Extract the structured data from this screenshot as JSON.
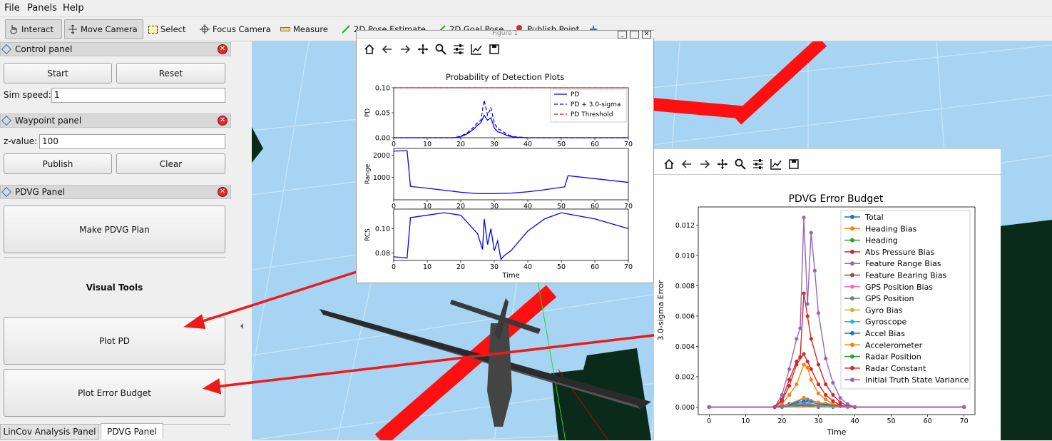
{
  "menubar": {
    "file": "File",
    "panels": "Panels",
    "help": "Help"
  },
  "toolbar": {
    "interact": "Interact",
    "move_camera": "Move Camera",
    "select": "Select",
    "focus_camera": "Focus Camera",
    "measure": "Measure",
    "pose_estimate": "2D Pose Estimate",
    "goal_pose": "2D Goal Pose",
    "publish_point": "Publish Point"
  },
  "control_panel": {
    "title": "Control panel",
    "start": "Start",
    "reset": "Reset",
    "sim_speed_label": "Sim speed:",
    "sim_speed_value": "1"
  },
  "waypoint_panel": {
    "title": "Waypoint panel",
    "z_label": "z-value:",
    "z_value": "100",
    "publish": "Publish",
    "clear": "Clear"
  },
  "pdvg_panel": {
    "title": "PDVG Panel",
    "make_plan": "Make PDVG Plan",
    "visual_tools": "Visual Tools",
    "plot_pd": "Plot PD",
    "plot_error_budget": "Plot Error Budget"
  },
  "tabs": {
    "lincov": "LinCov Analysis Panel",
    "pdvg": "PDVG Panel"
  },
  "figure1": {
    "window_title": "Figure 1",
    "title": "Probability of Detection Plots",
    "xlabel": "Time",
    "ylabel_top": "PD",
    "ylabel_mid": "Range",
    "ylabel_bot": "RCS",
    "legend": [
      "PD",
      "PD + 3.0-sigma",
      "PD Threshold"
    ]
  },
  "figure2": {
    "title": "PDVG Error Budget",
    "xlabel": "Time",
    "ylabel": "3.0-sigma Error"
  },
  "colors": {
    "view_bg": "#a6d4f2",
    "red_path": "#ff1010",
    "ground": "#0a2a1a",
    "pd": "#0000ff",
    "threshold": "#e00000"
  },
  "chart_data": [
    {
      "type": "line",
      "title": "Probability of Detection Plots",
      "ylabel": "PD",
      "xlabel": "",
      "ylim": [
        0,
        0.1
      ],
      "xlim": [
        0,
        70
      ],
      "series": [
        {
          "name": "PD",
          "x": [
            0,
            18,
            20,
            22,
            24,
            25,
            26,
            27,
            28,
            29,
            30,
            31,
            32,
            34,
            36,
            40,
            70
          ],
          "y": [
            0,
            0,
            0.002,
            0.008,
            0.018,
            0.025,
            0.03,
            0.045,
            0.035,
            0.04,
            0.02,
            0.012,
            0.01,
            0.004,
            0.001,
            0,
            0
          ]
        },
        {
          "name": "PD + 3.0-sigma",
          "x": [
            0,
            18,
            20,
            22,
            24,
            25,
            26,
            27,
            28,
            29,
            30,
            31,
            32,
            34,
            36,
            40,
            70
          ],
          "y": [
            0,
            0,
            0.003,
            0.01,
            0.022,
            0.03,
            0.035,
            0.075,
            0.045,
            0.06,
            0.03,
            0.018,
            0.015,
            0.006,
            0.002,
            0,
            0
          ]
        },
        {
          "name": "PD Threshold",
          "x": [
            0,
            70
          ],
          "y": [
            0.1,
            0.1
          ]
        }
      ]
    },
    {
      "type": "line",
      "ylabel": "Range",
      "xlabel": "",
      "ylim": [
        0,
        2300
      ],
      "xlim": [
        0,
        70
      ],
      "series": [
        {
          "name": "",
          "x": [
            0,
            4,
            5,
            10,
            20,
            25,
            30,
            35,
            40,
            45,
            51,
            52,
            70
          ],
          "y": [
            2180,
            2200,
            600,
            520,
            340,
            280,
            280,
            300,
            360,
            450,
            580,
            1080,
            780
          ]
        }
      ]
    },
    {
      "type": "line",
      "ylabel": "RCS",
      "xlabel": "Time",
      "ylim": [
        0.074,
        0.116
      ],
      "xlim": [
        0,
        70
      ],
      "series": [
        {
          "name": "",
          "x": [
            0,
            4,
            5,
            10,
            15,
            20,
            25,
            26.5,
            27,
            28,
            29,
            30,
            31,
            32,
            33,
            35,
            40,
            45,
            50,
            52,
            60,
            70
          ],
          "y": [
            0.077,
            0.076,
            0.109,
            0.111,
            0.113,
            0.111,
            0.096,
            0.083,
            0.108,
            0.087,
            0.1,
            0.082,
            0.09,
            0.075,
            0.078,
            0.082,
            0.098,
            0.108,
            0.113,
            0.112,
            0.108,
            0.1
          ]
        }
      ]
    },
    {
      "type": "line",
      "title": "PDVG Error Budget",
      "xlabel": "Time",
      "ylabel": "3.0-sigma Error",
      "ylim": [
        -0.0005,
        0.0132
      ],
      "xlim": [
        -3,
        73
      ],
      "legend": "top-right",
      "categories": [
        0,
        10,
        20,
        30,
        40,
        50,
        60,
        70
      ],
      "series": [
        {
          "name": "Total",
          "color": "#1f77b4",
          "x": [
            0,
            18,
            20,
            22,
            24,
            26,
            27,
            28,
            30,
            32,
            34,
            36,
            38,
            40,
            70
          ],
          "y": [
            0,
            0,
            0.0001,
            0.0002,
            0.0003,
            0.0006,
            0.0005,
            0.0004,
            0.0003,
            0.0002,
            0.0001,
            5e-05,
            0,
            0,
            0
          ]
        },
        {
          "name": "Heading Bias",
          "color": "#ff7f0e",
          "x": [
            0,
            18,
            20,
            22,
            24,
            26,
            27,
            28,
            30,
            32,
            34,
            36,
            38,
            40,
            70
          ],
          "y": [
            0,
            0,
            0.0002,
            0.0008,
            0.0015,
            0.0028,
            0.0026,
            0.0018,
            0.0009,
            0.0005,
            0.0002,
            0.0001,
            0,
            0,
            0
          ]
        },
        {
          "name": "Heading",
          "color": "#2ca02c",
          "x": [
            0,
            18,
            20,
            24,
            26,
            28,
            30,
            34,
            40,
            70
          ],
          "y": [
            0,
            0,
            0,
            0.0001,
            0.0002,
            0.0001,
            0.0001,
            0,
            0,
            0
          ]
        },
        {
          "name": "Abs Pressure Bias",
          "color": "#d62728",
          "x": [
            0,
            18,
            20,
            22,
            24,
            25,
            26,
            27,
            28,
            30,
            32,
            34,
            36,
            38,
            40,
            70
          ],
          "y": [
            0,
            0,
            0.0005,
            0.0018,
            0.003,
            0.0033,
            0.0075,
            0.006,
            0.0045,
            0.0028,
            0.0015,
            0.0008,
            0.0003,
            0.0001,
            0,
            0
          ]
        },
        {
          "name": "Feature Range Bias",
          "color": "#9467bd",
          "x": [
            0,
            18,
            20,
            22,
            24,
            25,
            26,
            27,
            28,
            29,
            30,
            32,
            34,
            36,
            38,
            40,
            70
          ],
          "y": [
            0,
            0,
            0.0008,
            0.0025,
            0.0045,
            0.0052,
            0.0125,
            0.0068,
            0.0115,
            0.009,
            0.0062,
            0.0032,
            0.0016,
            0.0006,
            0.0002,
            0,
            0
          ]
        },
        {
          "name": "Feature Bearing Bias",
          "color": "#8c564b",
          "x": [
            0,
            20,
            26,
            30,
            40,
            70
          ],
          "y": [
            0,
            0,
            0.0001,
            0,
            0,
            0
          ]
        },
        {
          "name": "GPS Position Bias",
          "color": "#e377c2",
          "x": [
            0,
            70
          ],
          "y": [
            0,
            0
          ]
        },
        {
          "name": "GPS Position",
          "color": "#7f7f7f",
          "x": [
            0,
            70
          ],
          "y": [
            0,
            0
          ]
        },
        {
          "name": "Gyro Bias",
          "color": "#bcbd22",
          "x": [
            0,
            70
          ],
          "y": [
            0,
            0
          ]
        },
        {
          "name": "Gyroscope",
          "color": "#17becf",
          "x": [
            0,
            20,
            26,
            30,
            40,
            70
          ],
          "y": [
            0,
            0,
            0.0003,
            0.0001,
            0,
            0
          ]
        },
        {
          "name": "Accel Bias",
          "color": "#1f77b4",
          "x": [
            0,
            20,
            26,
            30,
            40,
            70
          ],
          "y": [
            0,
            0,
            0.0004,
            0.0002,
            0,
            0
          ]
        },
        {
          "name": "Accelerometer",
          "color": "#ff7f0e",
          "x": [
            0,
            20,
            26,
            30,
            40,
            70
          ],
          "y": [
            0,
            0,
            0.0006,
            0.0003,
            0,
            0
          ]
        },
        {
          "name": "Radar Position",
          "color": "#2ca02c",
          "x": [
            0,
            20,
            26,
            30,
            40,
            70
          ],
          "y": [
            0,
            0,
            0.0002,
            0.0001,
            0,
            0
          ]
        },
        {
          "name": "Radar Constant",
          "color": "#d62728",
          "x": [
            0,
            18,
            20,
            22,
            24,
            26,
            27,
            28,
            30,
            32,
            34,
            36,
            40,
            70
          ],
          "y": [
            0,
            0,
            0.0004,
            0.0014,
            0.0028,
            0.0035,
            0.003,
            0.0025,
            0.0015,
            0.0008,
            0.0004,
            0.0001,
            0,
            0
          ]
        },
        {
          "name": "Initial Truth State Variance",
          "color": "#9467bd",
          "x": [
            0,
            20,
            26,
            30,
            40,
            70
          ],
          "y": [
            0,
            0,
            0.0002,
            0.0001,
            0,
            0
          ]
        }
      ]
    }
  ]
}
